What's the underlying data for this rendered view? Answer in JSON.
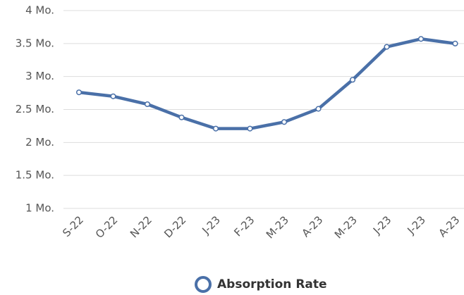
{
  "chart_data": {
    "type": "line",
    "categories": [
      "S-22",
      "O-22",
      "N-22",
      "D-22",
      "J-23",
      "F-23",
      "M-23",
      "A-23",
      "M-23",
      "J-23",
      "J-23",
      "A-23"
    ],
    "series": [
      {
        "name": "Absorption Rate",
        "color": "#4a70a8",
        "values": [
          2.76,
          2.7,
          2.58,
          2.38,
          2.21,
          2.21,
          2.31,
          2.51,
          2.95,
          3.45,
          3.57,
          3.5
        ]
      }
    ],
    "ylim": [
      1,
      4
    ],
    "yticks": [
      {
        "value": 1,
        "label": "1 Mo."
      },
      {
        "value": 1.5,
        "label": "1.5 Mo."
      },
      {
        "value": 2,
        "label": "2 Mo."
      },
      {
        "value": 2.5,
        "label": "2.5 Mo."
      },
      {
        "value": 3,
        "label": "3 Mo."
      },
      {
        "value": 3.5,
        "label": "3.5 Mo."
      },
      {
        "value": 4,
        "label": "4 Mo."
      }
    ],
    "grid": true
  }
}
